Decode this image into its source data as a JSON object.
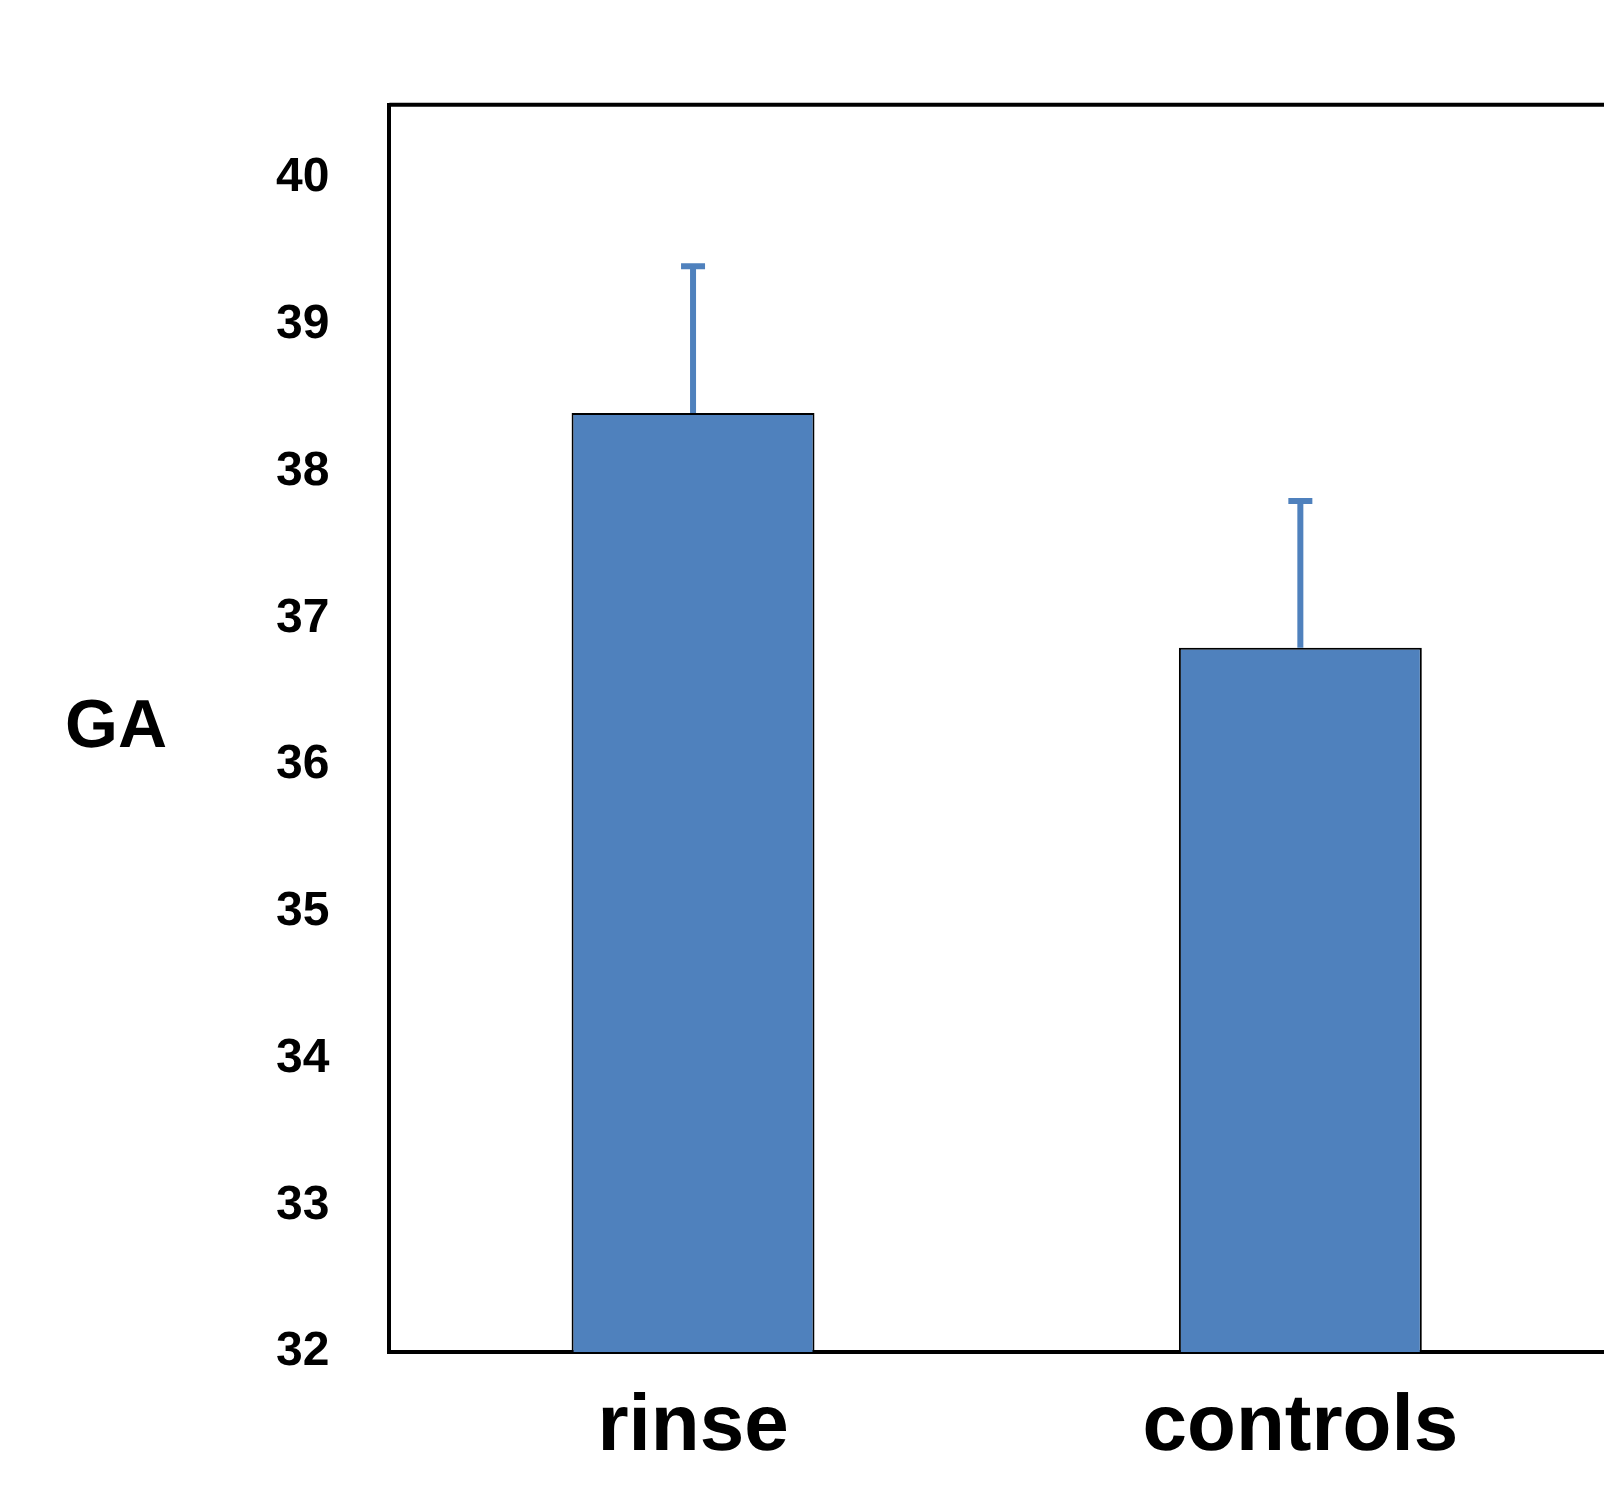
{
  "chart_data": {
    "type": "bar",
    "ylabel": "GA",
    "categories": [
      "rinse",
      "controls"
    ],
    "values": [
      38.4,
      36.8
    ],
    "color": "#4f81bd",
    "errors": [
      [
        38.4,
        39.4
      ],
      [
        36.8,
        37.8
      ]
    ],
    "ylim": [
      32,
      40.5
    ],
    "yticks": [
      32,
      33,
      34,
      35,
      36,
      37,
      38,
      39,
      40
    ],
    "grid": false,
    "legend": false
  }
}
